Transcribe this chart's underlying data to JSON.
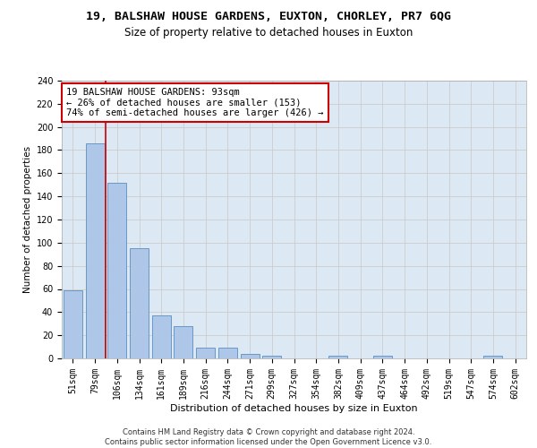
{
  "title1": "19, BALSHAW HOUSE GARDENS, EUXTON, CHORLEY, PR7 6QG",
  "title2": "Size of property relative to detached houses in Euxton",
  "xlabel": "Distribution of detached houses by size in Euxton",
  "ylabel": "Number of detached properties",
  "categories": [
    "51sqm",
    "79sqm",
    "106sqm",
    "134sqm",
    "161sqm",
    "189sqm",
    "216sqm",
    "244sqm",
    "271sqm",
    "299sqm",
    "327sqm",
    "354sqm",
    "382sqm",
    "409sqm",
    "437sqm",
    "464sqm",
    "492sqm",
    "519sqm",
    "547sqm",
    "574sqm",
    "602sqm"
  ],
  "values": [
    59,
    186,
    152,
    95,
    37,
    28,
    9,
    9,
    4,
    2,
    0,
    0,
    2,
    0,
    2,
    0,
    0,
    0,
    0,
    2,
    0
  ],
  "bar_color": "#aec6e8",
  "bar_edge_color": "#5a8fc0",
  "vline_x": 1.5,
  "vline_color": "#cc0000",
  "annotation_text": "19 BALSHAW HOUSE GARDENS: 93sqm\n← 26% of detached houses are smaller (153)\n74% of semi-detached houses are larger (426) →",
  "annotation_box_color": "#ffffff",
  "annotation_box_edge": "#cc0000",
  "ylim": [
    0,
    240
  ],
  "yticks": [
    0,
    20,
    40,
    60,
    80,
    100,
    120,
    140,
    160,
    180,
    200,
    220,
    240
  ],
  "grid_color": "#cccccc",
  "bg_color": "#dde8f5",
  "footer": "Contains HM Land Registry data © Crown copyright and database right 2024.\nContains public sector information licensed under the Open Government Licence v3.0.",
  "title1_fontsize": 9.5,
  "title2_fontsize": 8.5,
  "xlabel_fontsize": 8,
  "ylabel_fontsize": 7.5,
  "tick_fontsize": 7,
  "annotation_fontsize": 7.5,
  "footer_fontsize": 6
}
